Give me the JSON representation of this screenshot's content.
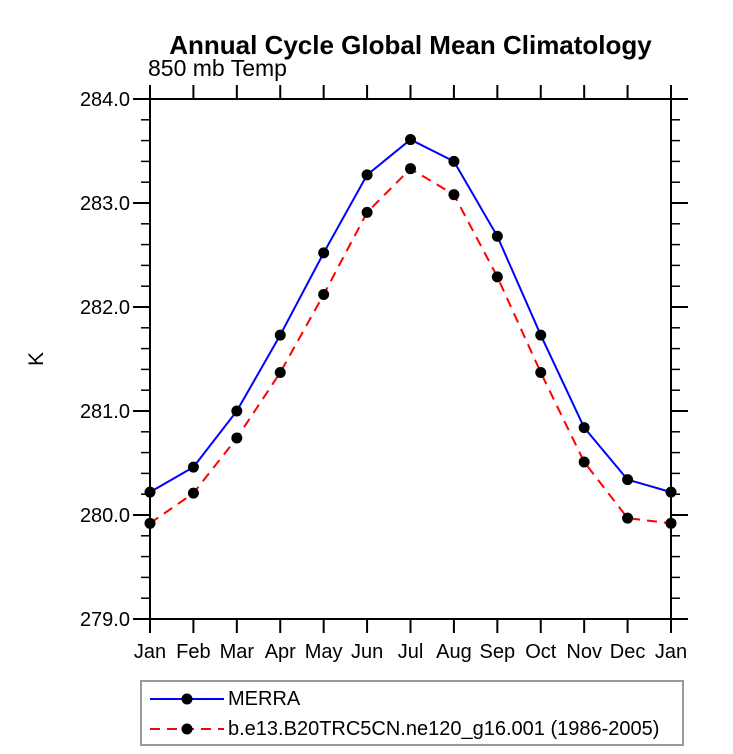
{
  "chart_data": {
    "type": "line",
    "title": "Annual Cycle Global Mean Climatology",
    "subtitle": "850 mb Temp",
    "ylabel": "K",
    "x_tick_labels": [
      "Jan",
      "Feb",
      "Mar",
      "Apr",
      "May",
      "Jun",
      "Jul",
      "Aug",
      "Sep",
      "Oct",
      "Nov",
      "Dec",
      "Jan"
    ],
    "y_tick_labels": [
      "284.0",
      "283.0",
      "282.0",
      "281.0",
      "280.0",
      "279.0"
    ],
    "ylim": [
      279.0,
      284.0
    ],
    "y_major_step": 1.0,
    "y_minor_step": 0.2,
    "grid": false,
    "legend_position": "bottom",
    "axis_color": "#000000",
    "marker": "filled-circle",
    "marker_color": "#000000",
    "series": [
      {
        "name": "MERRA",
        "color": "#0000ff",
        "style": "solid",
        "values": [
          280.22,
          280.46,
          281.0,
          281.73,
          282.52,
          283.27,
          283.61,
          283.4,
          282.68,
          281.73,
          280.84,
          280.34,
          280.22
        ]
      },
      {
        "name": "b.e13.B20TRC5CN.ne120_g16.001 (1986-2005)",
        "color": "#ff0000",
        "style": "dashed",
        "values": [
          279.92,
          280.21,
          280.74,
          281.37,
          282.12,
          282.91,
          283.33,
          283.08,
          282.29,
          281.37,
          280.51,
          279.97,
          279.92
        ]
      }
    ]
  }
}
